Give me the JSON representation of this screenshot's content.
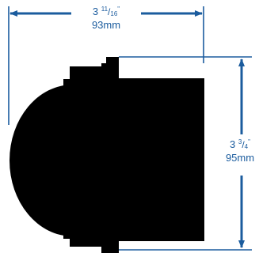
{
  "dimensions": {
    "width": {
      "whole": "3",
      "numerator": "11",
      "denominator": "16",
      "inch_mark": "\"",
      "metric": "93mm"
    },
    "height": {
      "whole": "3",
      "numerator": "3",
      "denominator": "4",
      "inch_mark": "\"",
      "metric": "95mm"
    }
  },
  "colors": {
    "dimension": "#1b5c9e",
    "silhouette": "#000000",
    "background": "#ffffff"
  }
}
